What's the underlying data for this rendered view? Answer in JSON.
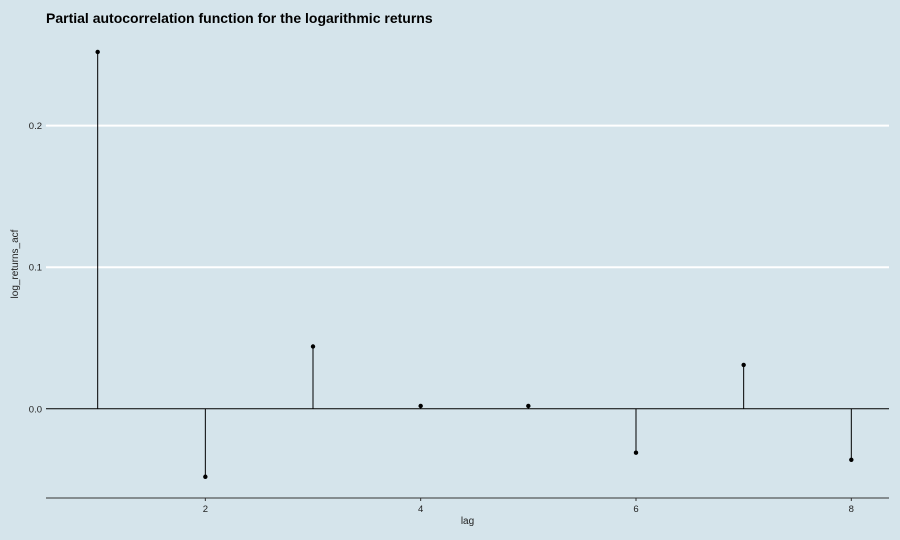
{
  "chart_data": {
    "type": "lollipop",
    "title": "Partial autocorrelation function for the logarithmic returns",
    "xlabel": "lag",
    "ylabel": "log_returns_acf",
    "x": [
      1,
      2,
      3,
      4,
      5,
      6,
      7,
      8
    ],
    "values": [
      0.252,
      -0.048,
      0.044,
      0.002,
      0.002,
      -0.031,
      0.031,
      -0.036
    ],
    "xlim": [
      0.52,
      8.35
    ],
    "ylim": [
      -0.063,
      0.264
    ],
    "x_ticks": [
      2,
      4,
      6,
      8
    ],
    "y_ticks": [
      0.0,
      0.1,
      0.2
    ],
    "x_tick_labels": [
      "2",
      "4",
      "6",
      "8"
    ],
    "y_tick_labels": [
      "0.0",
      "0.1",
      "0.2"
    ],
    "baseline": 0,
    "grid": "horizontal-major",
    "colors": {
      "background": "#d5e4eb",
      "gridline": "#ffffff",
      "stem": "#000000",
      "axis": "#333333"
    }
  }
}
